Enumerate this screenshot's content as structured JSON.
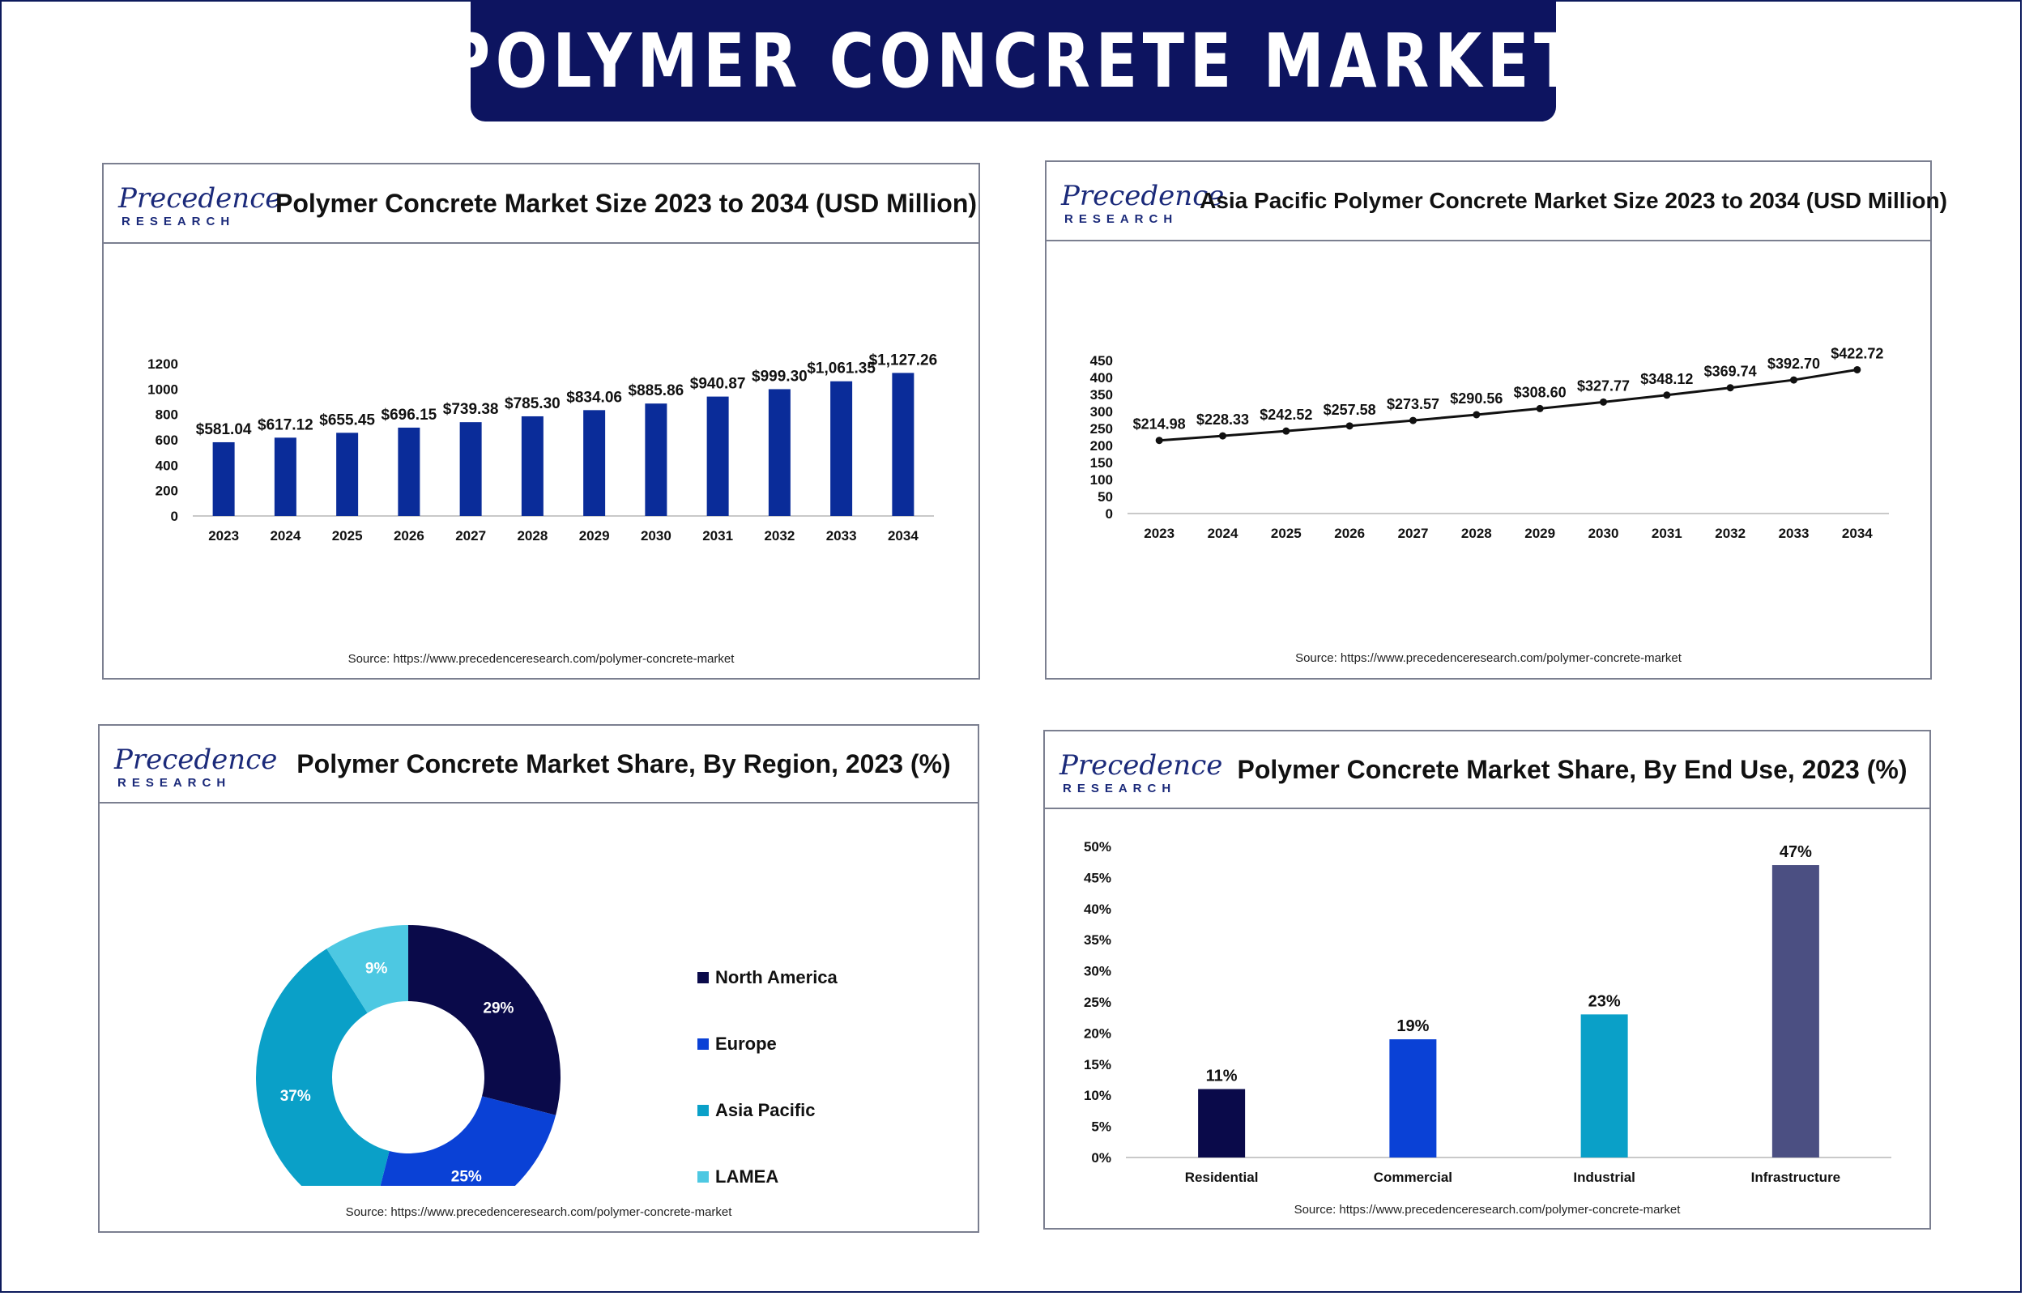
{
  "banner": {
    "title": "POLYMER CONCRETE MARKET"
  },
  "logo": {
    "main": "Precedence",
    "sub": "RESEARCH"
  },
  "colors": {
    "navy": "#0d1460",
    "bar_blue": "#0a2c99",
    "north_america": "#0a0a4a",
    "europe": "#0a41d6",
    "asia_pacific": "#0aa0c8",
    "lamea": "#4dc8e2",
    "infrastructure": "#4b4f82"
  },
  "panels": {
    "market_size": {
      "title": "Polymer Concrete Market Size 2023 to 2034 (USD Million)",
      "source": "Source: https://www.precedenceresearch.com/polymer-concrete-market"
    },
    "asia_pacific": {
      "title": "Asia Pacific Polymer Concrete Market Size 2023 to 2034 (USD Million)",
      "source": "Source: https://www.precedenceresearch.com/polymer-concrete-market"
    },
    "region_share": {
      "title": "Polymer Concrete Market Share, By Region, 2023 (%)",
      "source": "Source: https://www.precedenceresearch.com/polymer-concrete-market"
    },
    "end_use_share": {
      "title": "Polymer Concrete Market Share, By End Use, 2023 (%)",
      "source": "Source: https://www.precedenceresearch.com/polymer-concrete-market"
    }
  },
  "chart_data": [
    {
      "id": "market_size",
      "type": "bar",
      "title": "Polymer Concrete Market Size 2023 to 2034 (USD Million)",
      "categories": [
        "2023",
        "2024",
        "2025",
        "2026",
        "2027",
        "2028",
        "2029",
        "2030",
        "2031",
        "2032",
        "2033",
        "2034"
      ],
      "values": [
        581.04,
        617.12,
        655.45,
        696.15,
        739.38,
        785.3,
        834.06,
        885.86,
        940.87,
        999.3,
        1061.35,
        1127.26
      ],
      "data_labels": [
        "$581.04",
        "$617.12",
        "$655.45",
        "$696.15",
        "$739.38",
        "$785.30",
        "$834.06",
        "$885.86",
        "$940.87",
        "$999.30",
        "$1,061.35",
        "$1,127.26"
      ],
      "yticks": [
        "0",
        "200",
        "400",
        "600",
        "800",
        "1000",
        "1200"
      ],
      "ylim": [
        0,
        1200
      ],
      "grid": false
    },
    {
      "id": "asia_pacific",
      "type": "line",
      "title": "Asia Pacific Polymer Concrete Market Size 2023 to 2034 (USD Million)",
      "categories": [
        "2023",
        "2024",
        "2025",
        "2026",
        "2027",
        "2028",
        "2029",
        "2030",
        "2031",
        "2032",
        "2033",
        "2034"
      ],
      "values": [
        214.98,
        228.33,
        242.52,
        257.58,
        273.57,
        290.56,
        308.6,
        327.77,
        348.12,
        369.74,
        392.7,
        422.72
      ],
      "data_labels": [
        "$214.98",
        "$228.33",
        "$242.52",
        "$257.58",
        "$273.57",
        "$290.56",
        "$308.60",
        "$327.77",
        "$348.12",
        "$369.74",
        "$392.70",
        "$422.72"
      ],
      "yticks": [
        "0",
        "50",
        "100",
        "150",
        "200",
        "250",
        "300",
        "350",
        "400",
        "450"
      ],
      "ylim": [
        0,
        450
      ],
      "grid": false
    },
    {
      "id": "region_share",
      "type": "pie",
      "donut": true,
      "title": "Polymer Concrete Market Share, By Region, 2023 (%)",
      "labels": [
        "North America",
        "Europe",
        "Asia Pacific",
        "LAMEA"
      ],
      "values": [
        29,
        25,
        37,
        9
      ],
      "data_labels": [
        "29%",
        "25%",
        "37%",
        "9%"
      ],
      "legend": "right"
    },
    {
      "id": "end_use_share",
      "type": "bar",
      "title": "Polymer Concrete Market Share, By End Use, 2023 (%)",
      "categories": [
        "Residential",
        "Commercial",
        "Industrial",
        "Infrastructure"
      ],
      "values": [
        11,
        19,
        23,
        47
      ],
      "data_labels": [
        "11%",
        "19%",
        "23%",
        "47%"
      ],
      "yticks": [
        "0%",
        "5%",
        "10%",
        "15%",
        "20%",
        "25%",
        "30%",
        "35%",
        "40%",
        "45%",
        "50%"
      ],
      "ylim": [
        0,
        50
      ],
      "grid": false
    }
  ]
}
